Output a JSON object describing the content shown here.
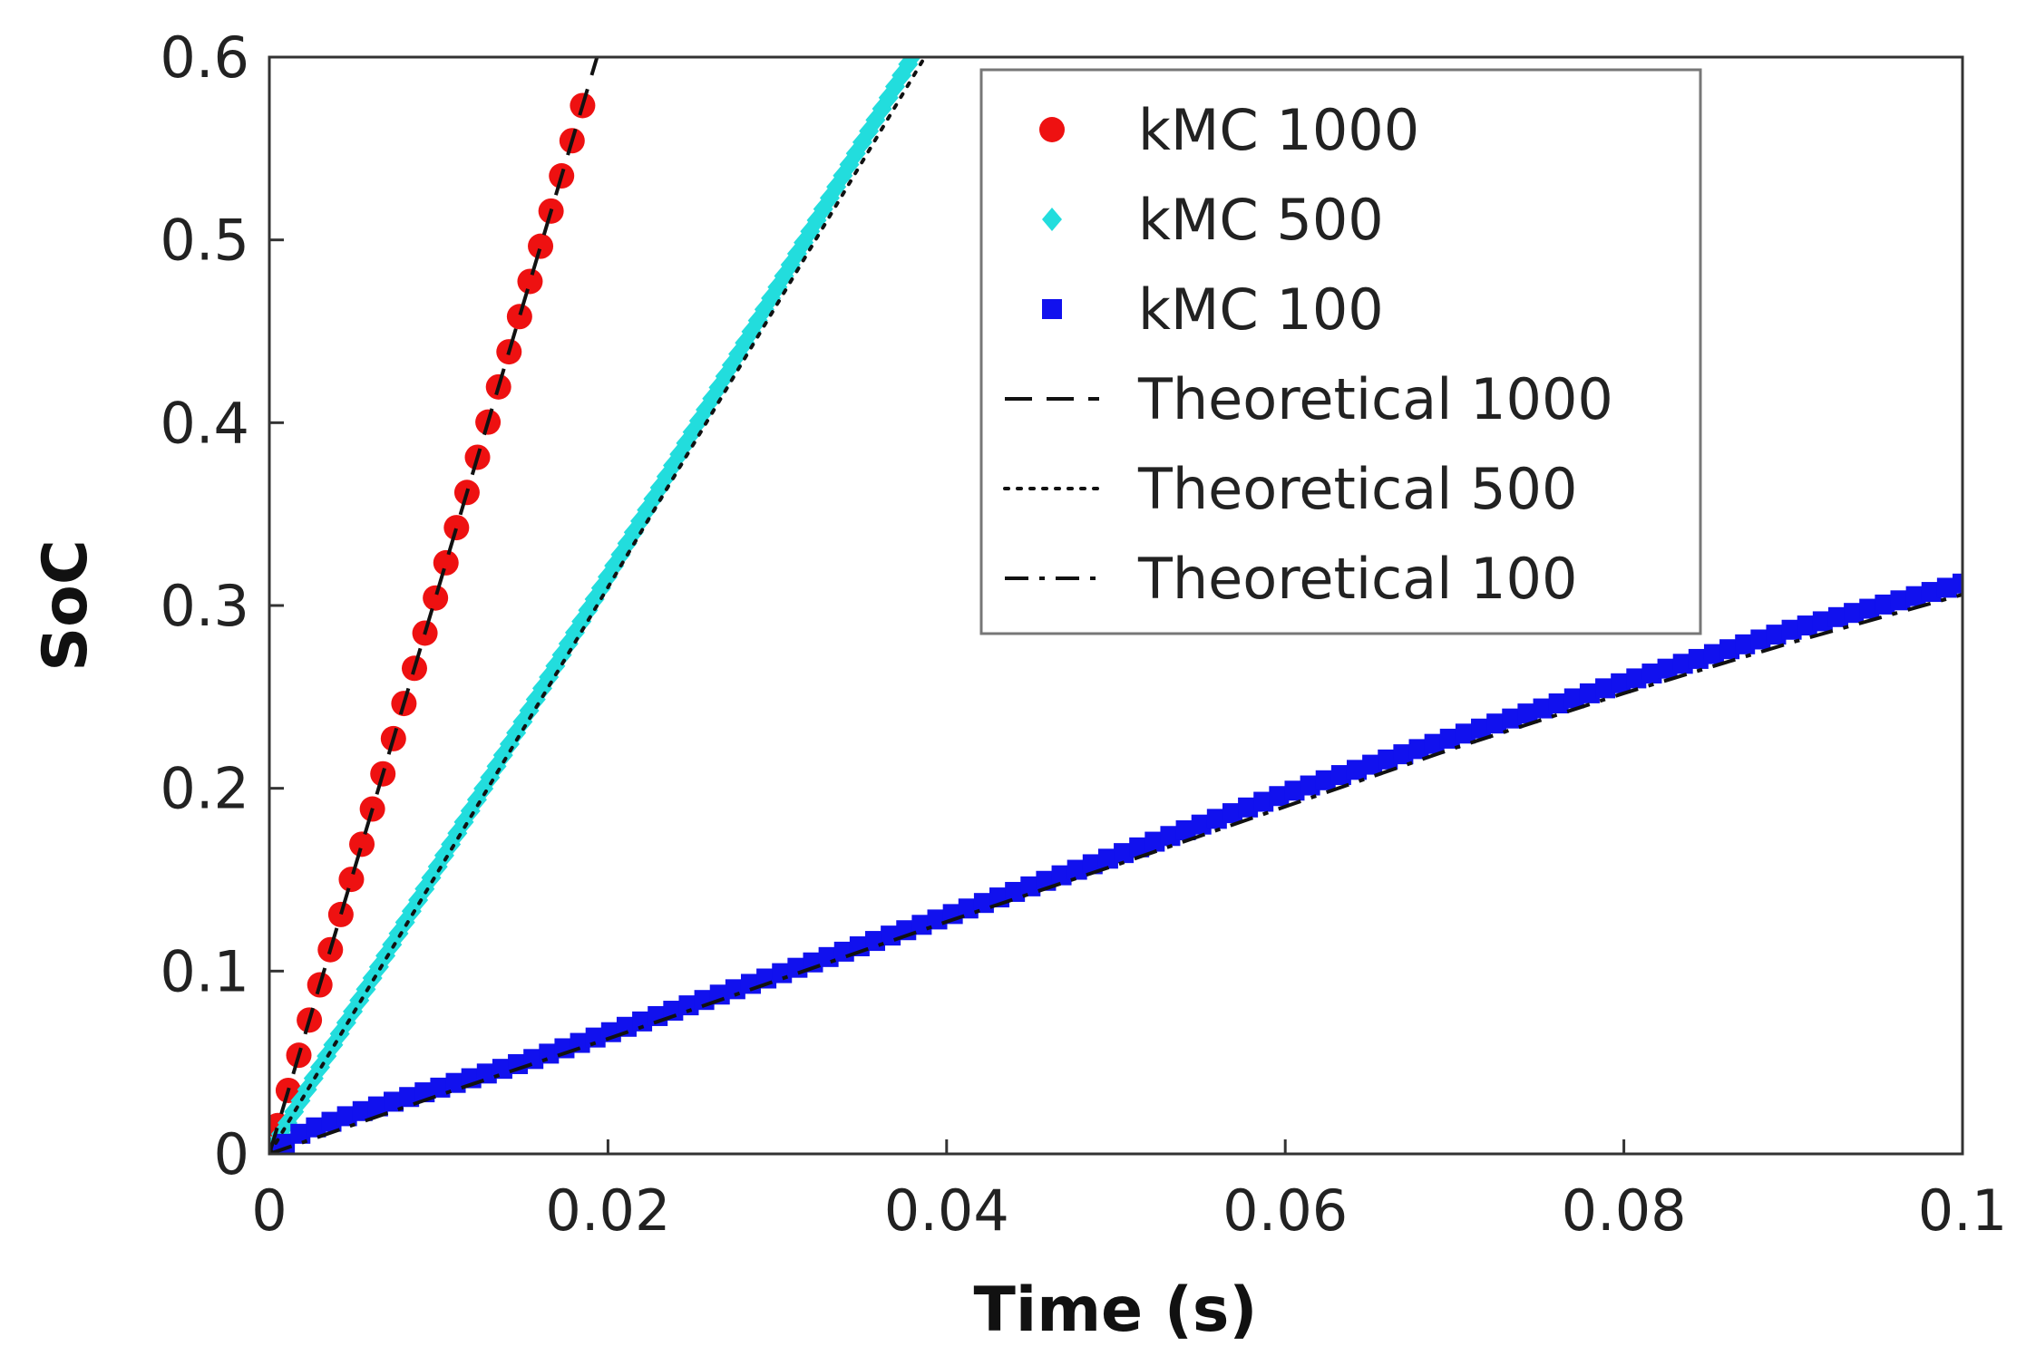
{
  "chart_data": {
    "type": "scatter",
    "title": "",
    "xlabel": "Time (s)",
    "ylabel": "SoC",
    "xlim": [
      0,
      0.1
    ],
    "ylim": [
      0,
      0.6
    ],
    "xticks": [
      0,
      0.02,
      0.04,
      0.06,
      0.08,
      0.1
    ],
    "xtick_labels": [
      "0",
      "0.02",
      "0.04",
      "0.06",
      "0.08",
      "0.1"
    ],
    "yticks": [
      0,
      0.1,
      0.2,
      0.3,
      0.4,
      0.5,
      0.6
    ],
    "ytick_labels": [
      "0",
      "0.1",
      "0.2",
      "0.3",
      "0.4",
      "0.5",
      "0.6"
    ],
    "grid": false,
    "legend_position": "top-right",
    "series": [
      {
        "name": "kMC 1000",
        "kind": "markers",
        "marker": "circle",
        "color": "#ee1111",
        "slope": 31.0,
        "x_start": 0.0005,
        "x_end": 0.0185,
        "count": 30
      },
      {
        "name": "kMC  500",
        "kind": "markers",
        "marker": "diamond",
        "color": "#22dddd",
        "slope": 15.8,
        "x_start": 0.0003,
        "x_end": 0.0385,
        "count": 100
      },
      {
        "name": "kMC 100",
        "kind": "markers",
        "marker": "square",
        "color": "#1111ee",
        "x": [
          0,
          0.002,
          0.005,
          0.01,
          0.015,
          0.02,
          0.03,
          0.04,
          0.05,
          0.06,
          0.07,
          0.08,
          0.09,
          0.1
        ],
        "y": [
          0,
          0.012,
          0.022,
          0.036,
          0.05,
          0.066,
          0.098,
          0.13,
          0.163,
          0.197,
          0.228,
          0.258,
          0.287,
          0.312
        ],
        "count": 110
      },
      {
        "name": "Theoretical 1000",
        "kind": "line",
        "dash": "dashed",
        "color": "#111111",
        "slope": 31.0
      },
      {
        "name": "Theoretical 500",
        "kind": "line",
        "dash": "dotted",
        "color": "#111111",
        "slope": 15.5
      },
      {
        "name": "Theoretical 100",
        "kind": "line",
        "dash": "dashdot",
        "color": "#111111",
        "x": [
          0,
          0.01,
          0.02,
          0.03,
          0.04,
          0.05,
          0.06,
          0.07,
          0.08,
          0.09,
          0.1
        ],
        "y": [
          0,
          0.032,
          0.063,
          0.095,
          0.127,
          0.158,
          0.19,
          0.222,
          0.252,
          0.28,
          0.306
        ]
      }
    ]
  }
}
